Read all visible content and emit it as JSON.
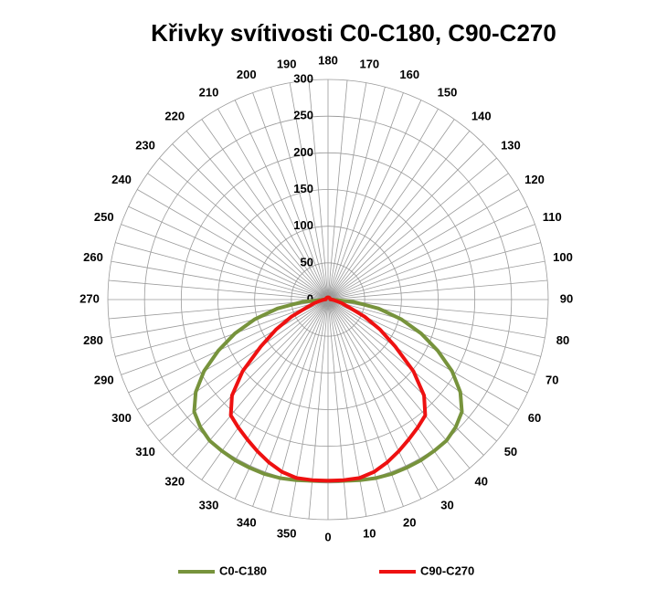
{
  "chart_data": {
    "type": "radar",
    "title": "Křivky svítivosti C0-C180, C90-C270",
    "categories": [
      0,
      null,
      10,
      null,
      20,
      null,
      30,
      null,
      40,
      null,
      50,
      null,
      60,
      null,
      70,
      null,
      80,
      null,
      90,
      null,
      100,
      null,
      110,
      null,
      120,
      null,
      130,
      null,
      140,
      null,
      150,
      null,
      160,
      null,
      170,
      null,
      180,
      null,
      190,
      null,
      200,
      null,
      210,
      null,
      220,
      null,
      230,
      null,
      240,
      null,
      250,
      null,
      260,
      null,
      270,
      null,
      280,
      null,
      290,
      null,
      300,
      null,
      310,
      null,
      320,
      null,
      330,
      null,
      340,
      null,
      350,
      null
    ],
    "rlim": [
      0,
      300
    ],
    "rticks": [
      0,
      50,
      100,
      150,
      200,
      250,
      300
    ],
    "grid": true,
    "legend": "bottom",
    "series": [
      {
        "name": "C0-C180",
        "color": "#77933c",
        "values": [
          247,
          248,
          250,
          252,
          253,
          253,
          253,
          252,
          251,
          246,
          238,
          220,
          195,
          165,
          135,
          103,
          70,
          35,
          5,
          3,
          3,
          3,
          3,
          3,
          3,
          3,
          3,
          3,
          3,
          3,
          3,
          3,
          3,
          3,
          3,
          3,
          3,
          3,
          3,
          3,
          3,
          3,
          3,
          3,
          3,
          3,
          3,
          3,
          3,
          3,
          3,
          3,
          3,
          3,
          5,
          35,
          70,
          103,
          135,
          165,
          195,
          220,
          238,
          246,
          251,
          252,
          253,
          253,
          253,
          252,
          250,
          248
        ]
      },
      {
        "name": "C90-C270",
        "color": "#ee1111",
        "values": [
          247,
          247,
          247,
          243,
          236,
          228,
          220,
          213,
          206,
          185,
          152,
          112,
          82,
          55,
          30,
          20,
          12,
          8,
          5,
          3,
          3,
          3,
          3,
          3,
          3,
          3,
          3,
          3,
          3,
          3,
          3,
          3,
          3,
          3,
          3,
          3,
          3,
          3,
          3,
          3,
          3,
          3,
          3,
          3,
          3,
          3,
          3,
          3,
          3,
          3,
          3,
          3,
          3,
          3,
          5,
          8,
          12,
          20,
          30,
          55,
          82,
          112,
          152,
          185,
          206,
          213,
          220,
          228,
          236,
          243,
          247,
          247
        ]
      }
    ]
  }
}
